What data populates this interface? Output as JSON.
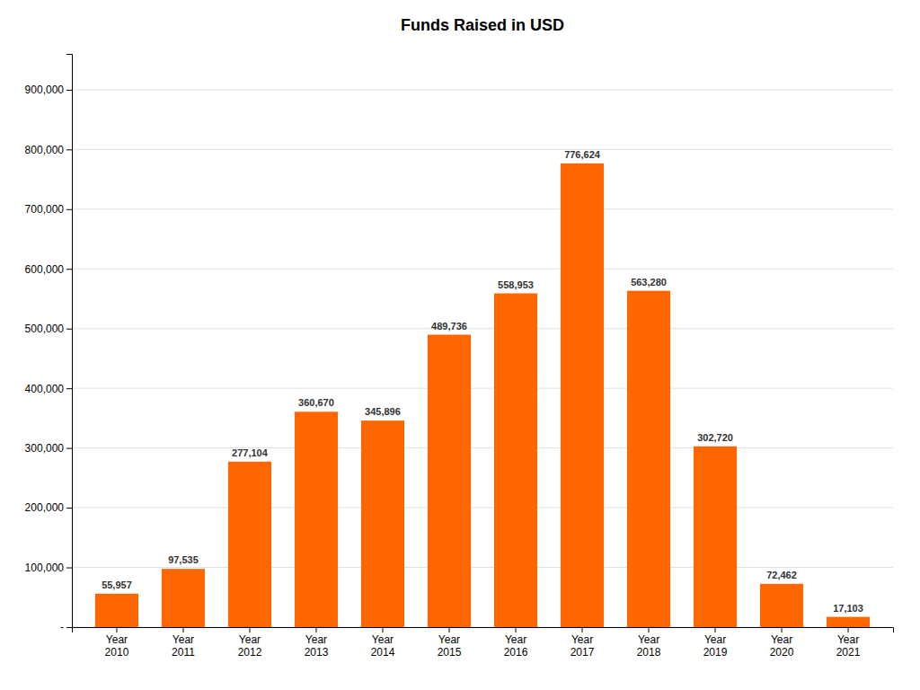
{
  "chart_data": {
    "type": "bar",
    "title": "Funds Raised in USD",
    "categories": [
      "Year\n2010",
      "Year\n2011",
      "Year\n2012",
      "Year\n2013",
      "Year\n2014",
      "Year\n2015",
      "Year\n2016",
      "Year\n2017",
      "Year\n2018",
      "Year\n2019",
      "Year\n2020",
      "Year\n2021"
    ],
    "values": [
      55957,
      97535,
      277104,
      360670,
      345896,
      489736,
      558953,
      776624,
      563280,
      302720,
      72462,
      17103
    ],
    "value_labels": [
      "55,957",
      "97,535",
      "277,104",
      "360,670",
      "345,896",
      "489,736",
      "558,953",
      "776,624",
      "563,280",
      "302,720",
      "72,462",
      "17,103"
    ],
    "data_labels": true,
    "color": "#FF6600",
    "ylim": [
      0,
      960000
    ],
    "yticks": [
      {
        "value": 0,
        "label": "-"
      },
      {
        "value": 100000,
        "label": "100,000"
      },
      {
        "value": 200000,
        "label": "200,000"
      },
      {
        "value": 300000,
        "label": "300,000"
      },
      {
        "value": 400000,
        "label": "400,000"
      },
      {
        "value": 500000,
        "label": "500,000"
      },
      {
        "value": 600000,
        "label": "600,000"
      },
      {
        "value": 700000,
        "label": "700,000"
      },
      {
        "value": 800000,
        "label": "800,000"
      },
      {
        "value": 900000,
        "label": "900,000"
      }
    ],
    "grid": true
  }
}
